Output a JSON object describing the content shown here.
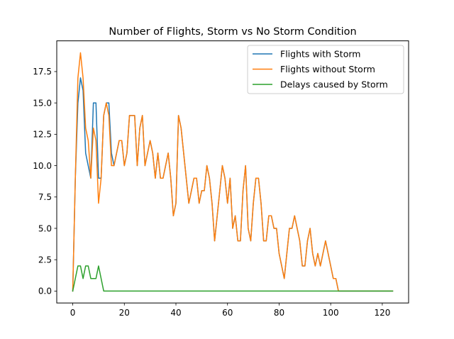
{
  "chart_data": {
    "type": "line",
    "title": "Number of Flights, Storm vs No Storm Condition",
    "xlabel": "",
    "ylabel": "",
    "xlim": [
      -6.2,
      130.2
    ],
    "ylim": [
      -0.95,
      19.95
    ],
    "xticks": [
      0,
      20,
      40,
      60,
      80,
      100,
      120
    ],
    "yticks": [
      0.0,
      2.5,
      5.0,
      7.5,
      10.0,
      12.5,
      15.0,
      17.5
    ],
    "ytick_labels": [
      "0.0",
      "2.5",
      "5.0",
      "7.5",
      "10.0",
      "12.5",
      "15.0",
      "17.5"
    ],
    "grid": false,
    "legend_position": "top-right",
    "series": [
      {
        "name": "Flights with Storm",
        "color": "#1f77b4",
        "values": [
          0,
          9,
          15,
          17,
          16,
          11,
          10,
          9,
          15,
          15,
          9,
          9,
          14,
          15,
          15,
          11,
          10,
          11,
          12,
          12,
          10,
          11,
          14,
          14,
          14,
          10,
          13,
          14,
          10,
          11,
          12,
          11,
          9,
          11,
          9,
          9,
          10,
          11,
          9,
          6,
          7,
          14,
          13,
          11,
          9,
          7,
          8,
          9,
          9,
          7,
          8,
          8,
          10,
          9,
          7,
          4,
          6,
          8,
          10,
          9,
          7,
          9,
          5,
          6,
          4,
          4,
          8,
          10,
          5,
          4,
          7,
          9,
          9,
          7,
          4,
          4,
          6,
          6,
          5,
          5,
          3,
          2,
          1,
          3,
          5,
          5,
          6,
          5,
          4,
          2,
          2,
          4,
          5,
          3,
          2,
          3,
          2,
          3,
          4,
          3,
          2,
          1,
          1,
          0,
          0,
          0,
          0,
          0,
          0,
          0,
          0,
          0,
          0,
          0,
          0,
          0,
          0,
          0,
          0,
          0,
          0,
          0,
          0,
          0,
          0
        ]
      },
      {
        "name": "Flights without Storm",
        "color": "#ff7f0e",
        "values": [
          0,
          9,
          17,
          19,
          17,
          13,
          12,
          9,
          13,
          12,
          7,
          9,
          14,
          15,
          14,
          10,
          10,
          11,
          12,
          12,
          10,
          11,
          14,
          14,
          14,
          10,
          13,
          14,
          10,
          11,
          12,
          11,
          9,
          11,
          9,
          9,
          10,
          11,
          9,
          6,
          7,
          14,
          13,
          11,
          9,
          7,
          8,
          9,
          9,
          7,
          8,
          8,
          10,
          9,
          7,
          4,
          6,
          8,
          10,
          9,
          7,
          9,
          5,
          6,
          4,
          4,
          8,
          10,
          5,
          4,
          7,
          9,
          9,
          7,
          4,
          4,
          6,
          6,
          5,
          5,
          3,
          2,
          1,
          3,
          5,
          5,
          6,
          5,
          4,
          2,
          2,
          4,
          5,
          3,
          2,
          3,
          2,
          3,
          4,
          3,
          2,
          1,
          1,
          0,
          0,
          0,
          0,
          0,
          0,
          0,
          0,
          0,
          0,
          0,
          0,
          0,
          0,
          0,
          0,
          0,
          0,
          0,
          0,
          0,
          0
        ]
      },
      {
        "name": "Delays caused by Storm",
        "color": "#2ca02c",
        "values": [
          0,
          1,
          2,
          2,
          1,
          2,
          2,
          1,
          1,
          1,
          2,
          1,
          0,
          0,
          0,
          0,
          0,
          0,
          0,
          0,
          0,
          0,
          0,
          0,
          0,
          0,
          0,
          0,
          0,
          0,
          0,
          0,
          0,
          0,
          0,
          0,
          0,
          0,
          0,
          0,
          0,
          0,
          0,
          0,
          0,
          0,
          0,
          0,
          0,
          0,
          0,
          0,
          0,
          0,
          0,
          0,
          0,
          0,
          0,
          0,
          0,
          0,
          0,
          0,
          0,
          0,
          0,
          0,
          0,
          0,
          0,
          0,
          0,
          0,
          0,
          0,
          0,
          0,
          0,
          0,
          0,
          0,
          0,
          0,
          0,
          0,
          0,
          0,
          0,
          0,
          0,
          0,
          0,
          0,
          0,
          0,
          0,
          0,
          0,
          0,
          0,
          0,
          0,
          0,
          0,
          0,
          0,
          0,
          0,
          0,
          0,
          0,
          0,
          0,
          0,
          0,
          0,
          0,
          0,
          0,
          0,
          0,
          0,
          0,
          0
        ]
      }
    ]
  }
}
